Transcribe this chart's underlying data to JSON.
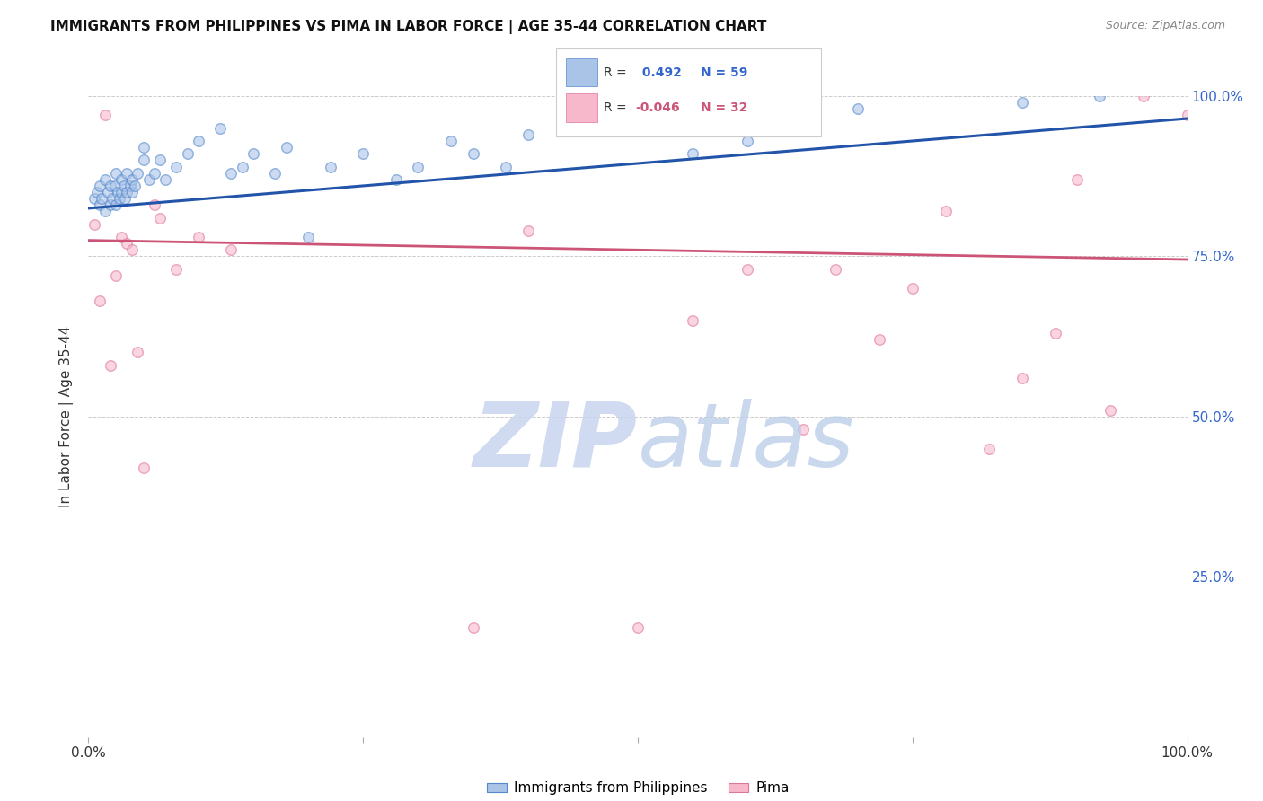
{
  "title": "IMMIGRANTS FROM PHILIPPINES VS PIMA IN LABOR FORCE | AGE 35-44 CORRELATION CHART",
  "source": "Source: ZipAtlas.com",
  "ylabel": "In Labor Force | Age 35-44",
  "xlim": [
    0.0,
    1.0
  ],
  "ylim": [
    0.0,
    1.0
  ],
  "xticks": [
    0.0,
    0.25,
    0.5,
    0.75,
    1.0
  ],
  "xticklabels": [
    "0.0%",
    "",
    "",
    "",
    "100.0%"
  ],
  "yticks_right": [
    0.0,
    0.25,
    0.5,
    0.75,
    1.0
  ],
  "ytick_labels_right": [
    "",
    "25.0%",
    "50.0%",
    "75.0%",
    "100.0%"
  ],
  "grid_color": "#cccccc",
  "background_color": "#ffffff",
  "blue_scatter_x": [
    0.005,
    0.008,
    0.01,
    0.01,
    0.012,
    0.015,
    0.015,
    0.018,
    0.02,
    0.02,
    0.022,
    0.024,
    0.025,
    0.025,
    0.027,
    0.028,
    0.03,
    0.03,
    0.032,
    0.033,
    0.035,
    0.035,
    0.038,
    0.04,
    0.04,
    0.042,
    0.045,
    0.05,
    0.05,
    0.055,
    0.06,
    0.065,
    0.07,
    0.08,
    0.09,
    0.1,
    0.12,
    0.13,
    0.14,
    0.15,
    0.17,
    0.18,
    0.2,
    0.22,
    0.25,
    0.28,
    0.3,
    0.33,
    0.35,
    0.38,
    0.4,
    0.45,
    0.5,
    0.55,
    0.6,
    0.65,
    0.7,
    0.85,
    0.92
  ],
  "blue_scatter_y": [
    0.84,
    0.85,
    0.83,
    0.86,
    0.84,
    0.87,
    0.82,
    0.85,
    0.86,
    0.83,
    0.84,
    0.86,
    0.88,
    0.83,
    0.85,
    0.84,
    0.87,
    0.85,
    0.86,
    0.84,
    0.88,
    0.85,
    0.86,
    0.87,
    0.85,
    0.86,
    0.88,
    0.92,
    0.9,
    0.87,
    0.88,
    0.9,
    0.87,
    0.89,
    0.91,
    0.93,
    0.95,
    0.88,
    0.89,
    0.91,
    0.88,
    0.92,
    0.78,
    0.89,
    0.91,
    0.87,
    0.89,
    0.93,
    0.91,
    0.89,
    0.94,
    0.95,
    0.96,
    0.91,
    0.93,
    0.99,
    0.98,
    0.99,
    1.0
  ],
  "pink_scatter_x": [
    0.005,
    0.01,
    0.015,
    0.02,
    0.025,
    0.03,
    0.035,
    0.04,
    0.045,
    0.05,
    0.06,
    0.065,
    0.08,
    0.1,
    0.13,
    0.35,
    0.4,
    0.5,
    0.55,
    0.6,
    0.65,
    0.68,
    0.72,
    0.75,
    0.78,
    0.82,
    0.85,
    0.88,
    0.9,
    0.93,
    0.96,
    1.0
  ],
  "pink_scatter_y": [
    0.8,
    0.68,
    0.97,
    0.58,
    0.72,
    0.78,
    0.77,
    0.76,
    0.6,
    0.42,
    0.83,
    0.81,
    0.73,
    0.78,
    0.76,
    0.17,
    0.79,
    0.17,
    0.65,
    0.73,
    0.48,
    0.73,
    0.62,
    0.7,
    0.82,
    0.45,
    0.56,
    0.63,
    0.87,
    0.51,
    1.0,
    0.97
  ],
  "blue_line_x": [
    0.0,
    1.0
  ],
  "blue_line_y": [
    0.825,
    0.965
  ],
  "pink_line_x": [
    0.0,
    1.0
  ],
  "pink_line_y": [
    0.775,
    0.745
  ],
  "blue_line_color": "#2255aa",
  "pink_line_color": "#cc5577",
  "blue_scatter_facecolor": "#aac4e8",
  "blue_scatter_edgecolor": "#5588cc",
  "pink_scatter_facecolor": "#f8b8cc",
  "pink_scatter_edgecolor": "#dd7799",
  "scatter_size": 70,
  "scatter_alpha": 0.6,
  "R_blue": 0.492,
  "N_blue": 59,
  "R_pink": -0.046,
  "N_pink": 32,
  "legend_label_blue": "Immigrants from Philippines",
  "legend_label_pink": "Pima",
  "watermark_zip_color": "#c8d4ee",
  "watermark_atlas_color": "#b8cce8",
  "watermark_fontsize": 72
}
